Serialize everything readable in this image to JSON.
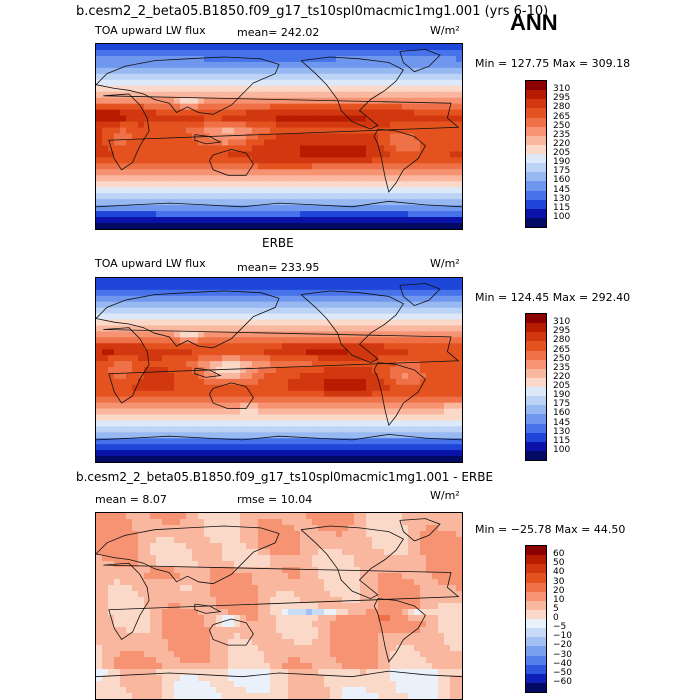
{
  "case_title": "b.cesm2_2_beta05.B1850.f09_g17_ts10spl0macmic1mg1.001 (yrs 6-10)",
  "season": "ANN",
  "chart_data": [
    {
      "type": "heatmap",
      "title": "",
      "variable": "TOA upward LW flux",
      "units": "W/m²",
      "mean_text": "mean=  242.02",
      "minmax_text": "Min = 127.75 Max = 309.18",
      "levels": [
        310,
        295,
        280,
        265,
        250,
        235,
        220,
        205,
        190,
        175,
        160,
        145,
        130,
        115,
        100
      ],
      "colorscale": "warm",
      "sample": "model"
    },
    {
      "type": "heatmap",
      "title": "ERBE",
      "variable": "TOA upward LW flux",
      "units": "W/m²",
      "mean_text": "mean=  233.95",
      "minmax_text": "Min = 124.45 Max = 292.40",
      "levels": [
        310,
        295,
        280,
        265,
        250,
        235,
        220,
        205,
        190,
        175,
        160,
        145,
        130,
        115,
        100
      ],
      "colorscale": "warm",
      "sample": "obs"
    },
    {
      "type": "heatmap",
      "title": "b.cesm2_2_beta05.B1850.f09_g17_ts10spl0macmic1mg1.001 - ERBE",
      "variable": "",
      "units": "W/m²",
      "mean_text": "mean =    8.07",
      "rmse_text": "rmse =   10.04",
      "minmax_text": "Min = −25.78 Max =  44.50",
      "levels": [
        60,
        50,
        40,
        30,
        20,
        10,
        5,
        0,
        -5,
        -10,
        -20,
        -30,
        -40,
        -50,
        -60
      ],
      "colorscale": "diverging",
      "sample": "diff"
    }
  ],
  "colors": {
    "warm": [
      "#8b0000",
      "#b81c00",
      "#d2380f",
      "#e4531f",
      "#ee7148",
      "#f59373",
      "#f8b79e",
      "#fad9c8",
      "#dde9f8",
      "#bdd3f5",
      "#97b8f1",
      "#6f97ee",
      "#4672ea",
      "#1e46d8",
      "#0b12a8",
      "#030a64"
    ],
    "diverging": [
      "#8b0000",
      "#b81c00",
      "#d2380f",
      "#e4531f",
      "#ee7148",
      "#f59373",
      "#f8b79e",
      "#fad9c8",
      "#eaf1fb",
      "#c8dbf6",
      "#a2c0f3",
      "#7aa1ef",
      "#5280ec",
      "#2c56e0",
      "#0e20b8",
      "#030a64"
    ]
  }
}
